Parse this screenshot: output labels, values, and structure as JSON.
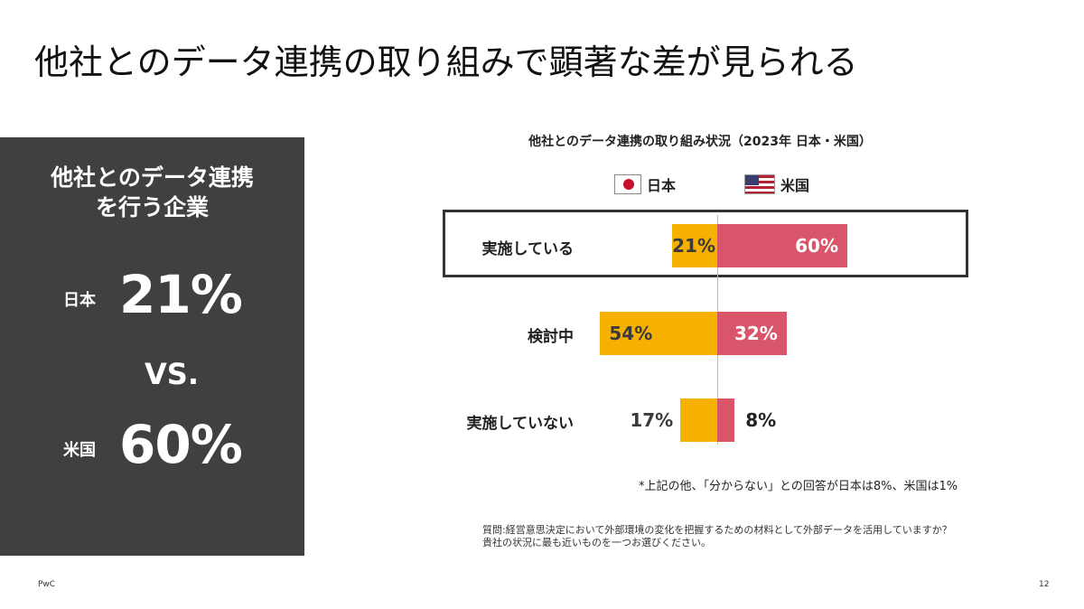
{
  "title": "他社とのデータ連携の取り組みで顕著な差が見られる",
  "panel": {
    "heading_line1": "他社とのデータ連携",
    "heading_line2": "を行う企業",
    "japan_label": "日本",
    "japan_value": "21%",
    "vs": "VS.",
    "us_label": "米国",
    "us_value": "60%"
  },
  "chart_data": {
    "type": "bar",
    "orientation": "horizontal-diverging",
    "title": "他社とのデータ連携の取り組み状況（2023年 日本・米国）",
    "categories": [
      "実施している",
      "検討中",
      "実施していない"
    ],
    "series": [
      {
        "name": "日本",
        "values": [
          21,
          54,
          17
        ],
        "labels": [
          "21%",
          "54%",
          "17%"
        ],
        "color": "#f6b000"
      },
      {
        "name": "米国",
        "values": [
          60,
          32,
          8
        ],
        "labels": [
          "60%",
          "32%",
          "8%"
        ],
        "color": "#d9566a"
      }
    ],
    "unit": "%",
    "highlighted_category": "実施している"
  },
  "footnote": "*上記の他、「分からない」との回答が日本は8%、米国は1%",
  "question_line1": "質問:経営意思決定において外部環境の変化を把握するための材料として外部データを活用していますか？",
  "question_line2": "貴社の状況に最も近いものを一つお選びください。",
  "footer": {
    "brand": "PwC",
    "page": "12"
  },
  "colors": {
    "panel_bg": "#404040",
    "japan": "#f6b000",
    "us": "#d9566a"
  },
  "icons": {
    "japan_flag": "japan-flag-icon",
    "us_flag": "us-flag-icon"
  }
}
